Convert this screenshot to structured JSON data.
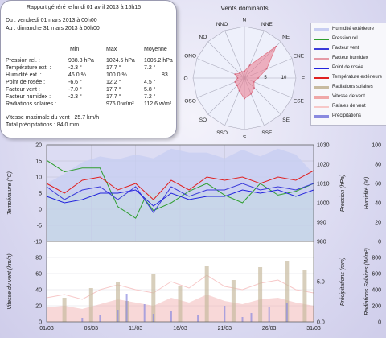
{
  "report": {
    "title": "Rapport généré le lundi 01 avril 2013 à 15h15",
    "from": "Du : vendredi 01 mars 2013 à 00h00",
    "to": "Au : dimanche 31 mars 2013 à 00h00",
    "headers": [
      "Min",
      "Max",
      "Moyenne"
    ],
    "rows": [
      {
        "label": "Pression rel. :",
        "min": "988.3 hPa",
        "max": "1024.5 hPa",
        "avg": "1005.2 hPa"
      },
      {
        "label": "Température ext. :",
        "min": "-2.3 °",
        "max": "17.7 °",
        "avg": "7.2 °"
      },
      {
        "label": "Humidité ext. :",
        "min": "46.0 %",
        "max": "100.0 %",
        "avg": "83"
      },
      {
        "label": "Point de rosée :",
        "min": "-6.6 °",
        "max": "12.2 °",
        "avg": "4.5 °"
      },
      {
        "label": "Facteur vent :",
        "min": "-7.0 °",
        "max": "17.7 °",
        "avg": "5.8 °"
      },
      {
        "label": "Facteur humidex :",
        "min": "-2.3 °",
        "max": "17.7 °",
        "avg": "7.2 °"
      },
      {
        "label": "Radiations solaires :",
        "min": "",
        "max": "976.0 w/m²",
        "avg": "112.6 w/m²"
      }
    ],
    "wind_max": "Vitesse maximale du vent : 25.7 km/h",
    "precip_total": "Total précipitations : 84.0 mm"
  },
  "colors": {
    "humidity": "#c7cdf1",
    "pressure": "#2e9e2e",
    "windchill": "#3b3bd9",
    "humidex": "#e59aa6",
    "dewpoint": "#2222dd",
    "temperature": "#e02020",
    "solar": "#c8bba0",
    "wind_speed": "#f0a8a8",
    "gusts": "#f7c8c8",
    "precip": "#8a8ae0",
    "bg_green": "#c9eec9",
    "bg_blue": "#dcdcf3"
  },
  "chart_data": [
    {
      "type": "radar",
      "title": "Vents dominants",
      "directions": [
        "N",
        "NNE",
        "NE",
        "ENE",
        "E",
        "ESE",
        "SE",
        "SSE",
        "S",
        "SSO",
        "SO",
        "OSO",
        "O",
        "ONO",
        "NO",
        "NNO"
      ],
      "ticks": [
        "5",
        "10"
      ],
      "rmax": 15,
      "values": [
        2,
        4,
        13,
        7,
        4,
        3,
        4,
        5,
        6,
        4,
        3,
        3,
        2,
        3,
        2,
        2
      ]
    },
    {
      "type": "line",
      "x_tick_labels": [
        "01/03",
        "06/03",
        "11/03",
        "16/03",
        "21/03",
        "26/03",
        "31/03"
      ],
      "days": 30,
      "ylabel_left": "Température (°C)",
      "ylim_left": [
        -10,
        20
      ],
      "yticks_left": [
        "20",
        "15",
        "10",
        "5",
        "0",
        "-5",
        "-10"
      ],
      "ylabel_pressure": "Pression (hPa)",
      "ylim_pressure": [
        980,
        1030
      ],
      "yticks_pressure": [
        "1030",
        "1020",
        "1010",
        "1000",
        "990",
        "980"
      ],
      "ylabel_humidity": "Humidité (%)",
      "ylim_humidity": [
        0,
        100
      ],
      "yticks_humidity": [
        "100",
        "80",
        "60",
        "40",
        "20",
        "0"
      ],
      "series": [
        {
          "name": "Humidité extérieure",
          "axis": "humidity",
          "x": [
            0,
            2,
            4,
            6,
            8,
            10,
            12,
            14,
            16,
            18,
            20,
            22,
            24,
            26,
            28,
            30
          ],
          "y": [
            60,
            70,
            82,
            88,
            85,
            90,
            86,
            96,
            92,
            92,
            86,
            95,
            88,
            96,
            90,
            70
          ]
        },
        {
          "name": "Pression rel.",
          "axis": "pressure",
          "x": [
            0,
            2,
            4,
            6,
            8,
            10,
            11,
            12,
            14,
            16,
            18,
            20,
            22,
            24,
            26,
            28,
            30
          ],
          "y": [
            1022,
            1016,
            1018,
            1018,
            998,
            992,
            1002,
            996,
            1000,
            1006,
            1010,
            1004,
            1000,
            1010,
            1004,
            1006,
            1010
          ]
        },
        {
          "name": "Facteur vent",
          "axis": "left",
          "x": [
            0,
            2,
            4,
            6,
            8,
            10,
            12,
            14,
            16,
            18,
            20,
            22,
            24,
            26,
            28,
            30
          ],
          "y": [
            7,
            3,
            6,
            7,
            3,
            7,
            -1,
            7,
            4,
            6,
            6,
            8,
            6,
            7,
            6,
            8
          ]
        },
        {
          "name": "Point de rosée",
          "axis": "left",
          "x": [
            0,
            2,
            4,
            6,
            8,
            10,
            12,
            14,
            16,
            18,
            20,
            22,
            24,
            26,
            28,
            30
          ],
          "y": [
            4,
            2,
            3,
            5,
            5,
            6,
            1,
            5,
            3,
            4,
            4,
            6,
            5,
            6,
            4,
            6
          ]
        },
        {
          "name": "Température extérieure",
          "axis": "left",
          "x": [
            0,
            2,
            4,
            6,
            8,
            10,
            12,
            14,
            16,
            18,
            20,
            22,
            24,
            26,
            28,
            30
          ],
          "y": [
            8,
            5,
            9,
            10,
            6,
            8,
            3,
            9,
            6,
            10,
            9,
            10,
            8,
            10,
            9,
            12
          ]
        }
      ]
    },
    {
      "type": "bar",
      "x_tick_labels": [
        "01/03",
        "06/03",
        "11/03",
        "16/03",
        "21/03",
        "26/03",
        "31/03"
      ],
      "days": 30,
      "ylabel_left": "Vitesse du vent (km/h)",
      "ylim_left": [
        0,
        100
      ],
      "yticks_left": [
        "100",
        "80",
        "60",
        "40",
        "20",
        "0"
      ],
      "ylabel_precip": "Précipitations (mm)",
      "ylim_precip": [
        0,
        10
      ],
      "yticks_precip": [
        "10.0",
        "5.0",
        "0.0"
      ],
      "ylabel_solar": "Radiations Solaires (W/m²)",
      "ylim_solar": [
        0,
        1000
      ],
      "yticks_solar": [
        "1000",
        "800",
        "600",
        "400",
        "200",
        "0"
      ],
      "series": [
        {
          "name": "Vitesse de vent",
          "axis": "left",
          "x": [
            0,
            2,
            4,
            6,
            8,
            10,
            12,
            14,
            16,
            18,
            20,
            22,
            24,
            26,
            28,
            30
          ],
          "y": [
            18,
            20,
            16,
            22,
            28,
            24,
            20,
            30,
            24,
            34,
            26,
            22,
            28,
            30,
            24,
            20
          ]
        },
        {
          "name": "Rafales de vent",
          "axis": "left",
          "x": [
            0,
            2,
            4,
            6,
            8,
            10,
            12,
            14,
            16,
            18,
            20,
            22,
            24,
            26,
            28,
            30
          ],
          "y": [
            30,
            34,
            28,
            40,
            46,
            40,
            36,
            50,
            42,
            58,
            44,
            40,
            48,
            52,
            40,
            36
          ]
        },
        {
          "name": "Radiations solaires",
          "axis": "solar",
          "x": [
            2,
            5,
            8,
            9,
            12,
            15,
            18,
            21,
            24,
            27,
            29
          ],
          "y": [
            300,
            420,
            500,
            260,
            600,
            450,
            700,
            520,
            680,
            760,
            640
          ]
        },
        {
          "name": "Précipitations",
          "axis": "precip",
          "x": [
            4,
            6,
            8,
            9,
            11,
            12,
            14,
            17,
            20,
            22,
            23,
            25,
            27
          ],
          "y": [
            0.5,
            0.8,
            1.5,
            3.5,
            2.2,
            1.0,
            1.4,
            0.9,
            2.0,
            0.6,
            1.1,
            1.8,
            2.4
          ]
        }
      ]
    }
  ],
  "legend": [
    {
      "label": "Humidité extérieure",
      "color": "#c7cdf1",
      "kind": "area"
    },
    {
      "label": "Pression rel.",
      "color": "#2e9e2e",
      "kind": "line"
    },
    {
      "label": "Facteur vent",
      "color": "#3b3bd9",
      "kind": "line"
    },
    {
      "label": "Facteur humidex",
      "color": "#e59aa6",
      "kind": "line"
    },
    {
      "label": "Point de rosée",
      "color": "#2222dd",
      "kind": "line"
    },
    {
      "label": "Température extérieure",
      "color": "#e02020",
      "kind": "line"
    },
    {
      "label": "Radiations solaires",
      "color": "#c8bba0",
      "kind": "area"
    },
    {
      "label": "Vitesse de vent",
      "color": "#f0a8a8",
      "kind": "area"
    },
    {
      "label": "Rafales de vent",
      "color": "#f7c8c8",
      "kind": "line"
    },
    {
      "label": "Précipitations",
      "color": "#8a8ae0",
      "kind": "area"
    }
  ]
}
